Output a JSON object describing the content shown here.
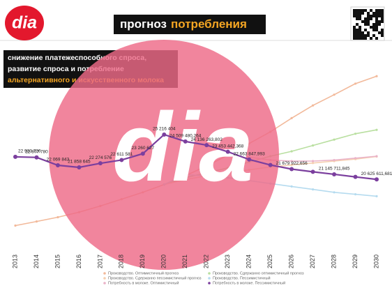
{
  "header": {
    "logo": "dia",
    "title_prefix": "прогноз",
    "title_highlight": "потребления",
    "subtitle_lines": [
      "снижение платежеспособного спроса,",
      "развитие спроса и потребление"
    ],
    "subtitle_highlight": "альтернативного и искусственного молока",
    "watermark": "dia"
  },
  "chart_data": {
    "type": "line",
    "categories": [
      "2013",
      "2014",
      "2015",
      "2016",
      "2017",
      "2018",
      "2019",
      "2020",
      "2021",
      "2022",
      "2023",
      "2024",
      "2025",
      "2026",
      "2027",
      "2028",
      "2029",
      "2030"
    ],
    "ylim": [
      14000000,
      34000000
    ],
    "series": [
      {
        "name": "Производство. Оптимистичный прогноз",
        "color": "#f2b99a",
        "values": [
          15893526,
          16311080,
          16750000,
          17270000,
          17900000,
          18600000,
          19300000,
          20100000,
          21000000,
          22000000,
          23100000,
          24300000,
          25500000,
          26900000,
          28200000,
          29300000,
          30432977,
          31194724
        ]
      },
      {
        "name": "Производство. Сдержанно оптимистичный прогноз",
        "color": "#b9dfa0",
        "values": [
          null,
          null,
          null,
          null,
          null,
          null,
          null,
          20100000,
          20800000,
          21300000,
          21800000,
          22400000,
          23000000,
          23500000,
          24100000,
          24700000,
          25300000,
          25700871
        ]
      },
      {
        "name": "Производство. Сдержанно пессимистичный прогноз",
        "color": "#f5cfb0",
        "values": [
          null,
          null,
          null,
          null,
          null,
          null,
          null,
          20100000,
          20600000,
          21000000,
          21300000,
          21600000,
          21900000,
          22100000,
          22300000,
          22500000,
          22700000,
          22967867
        ]
      },
      {
        "name": "Производство. Пессимистичный",
        "color": "#b5dbef",
        "values": [
          null,
          null,
          null,
          null,
          null,
          null,
          null,
          20100000,
          21100000,
          21000000,
          20800000,
          20500000,
          20200000,
          19900000,
          19600000,
          19300000,
          19100000,
          18900000
        ]
      },
      {
        "name": "Потребность в молоке. Оптимистичный",
        "color": "#eab3c8",
        "values": [
          null,
          null,
          null,
          null,
          null,
          null,
          null,
          25200000,
          24500000,
          24100000,
          23500000,
          22900000,
          22600000,
          22500000,
          22500000,
          22600000,
          22800000,
          23000000
        ]
      },
      {
        "name": "Потребность в молоке. Пессимистичный",
        "color": "#7b3f9e",
        "values": [
          22933726,
          22877780,
          22069843,
          21858645,
          22274576,
          22611581,
          23260627,
          25216404,
          24509480.264,
          24136263.802,
          23453442.368,
          22663847.993,
          22100000,
          21679922.656,
          21400000,
          21145711.845,
          20880000,
          20625611.681
        ],
        "value_labels": [
          "22 933 726",
          "22 877 780",
          "22 069 843",
          "21 858 645",
          "22 274 576",
          "22 611 581",
          "23 260 627",
          "25 216 404",
          "24 509 480,264",
          "24 136 263,802",
          "23 453 442,368",
          "22 663 847,993",
          null,
          "21 679 922,656",
          null,
          "21 145 711,845",
          null,
          "20 625 611,681"
        ]
      }
    ]
  }
}
